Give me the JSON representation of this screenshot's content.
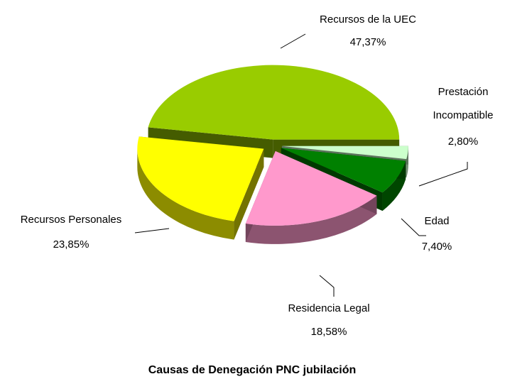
{
  "chart_data": {
    "type": "pie",
    "title": "Causas de Denegación PNC jubilación",
    "categories": [
      "Recursos de la UEC",
      "Prestación Incompatible",
      "Edad",
      "Residencia Legal",
      "Recursos Personales"
    ],
    "values": [
      47.37,
      2.8,
      7.4,
      18.58,
      23.85
    ],
    "value_labels": [
      "47,37%",
      "2,80%",
      "7,40%",
      "18,58%",
      "23,85%"
    ],
    "colors": [
      "#99cc00",
      "#ccffcc",
      "#008000",
      "#ff99cc",
      "#ffff00"
    ]
  }
}
